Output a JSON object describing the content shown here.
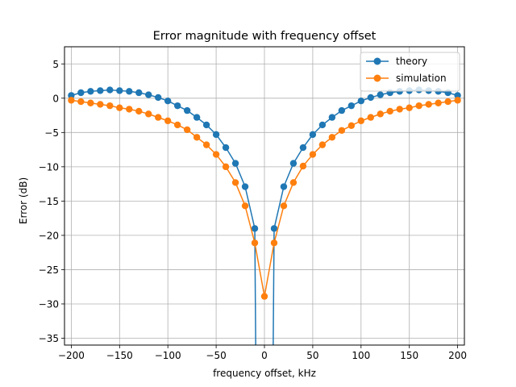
{
  "chart_data": {
    "type": "line",
    "title": "Error magnitude with frequency offset",
    "xlabel": "frequency offset, kHz",
    "ylabel": "Error (dB)",
    "xlim": [
      -207,
      207
    ],
    "ylim": [
      -36,
      7.5
    ],
    "xticks": [
      -200,
      -150,
      -100,
      -50,
      0,
      50,
      100,
      150,
      200
    ],
    "yticks": [
      5,
      0,
      -5,
      -10,
      -15,
      -20,
      -25,
      -30,
      -35
    ],
    "grid": true,
    "legend_position": "top-right",
    "series": [
      {
        "name": "theory",
        "color": "#1f77b4",
        "marker": "circle",
        "x": [
          -200,
          -190,
          -180,
          -170,
          -160,
          -150,
          -140,
          -130,
          -120,
          -110,
          -100,
          -90,
          -80,
          -70,
          -60,
          -50,
          -40,
          -30,
          -20,
          -10,
          0,
          10,
          20,
          30,
          40,
          50,
          60,
          70,
          80,
          90,
          100,
          110,
          120,
          130,
          140,
          150,
          160,
          170,
          180,
          190,
          200
        ],
        "y": [
          0.4,
          0.8,
          1.0,
          1.1,
          1.2,
          1.1,
          1.0,
          0.8,
          0.5,
          0.1,
          -0.4,
          -1.1,
          -1.8,
          -2.8,
          -3.9,
          -5.3,
          -7.2,
          -9.5,
          -12.9,
          -19.0,
          null,
          -19.0,
          -12.9,
          -9.5,
          -7.2,
          -5.3,
          -3.9,
          -2.8,
          -1.8,
          -1.1,
          -0.4,
          0.1,
          0.5,
          0.8,
          1.0,
          1.1,
          1.2,
          1.1,
          1.0,
          0.8,
          0.4
        ],
        "dip_below_axis_between": [
          -10,
          10
        ]
      },
      {
        "name": "simulation",
        "color": "#ff7f0e",
        "marker": "circle",
        "x": [
          -200,
          -190,
          -180,
          -170,
          -160,
          -150,
          -140,
          -130,
          -120,
          -110,
          -100,
          -90,
          -80,
          -70,
          -60,
          -50,
          -40,
          -30,
          -20,
          -10,
          0,
          10,
          20,
          30,
          40,
          50,
          60,
          70,
          80,
          90,
          100,
          110,
          120,
          130,
          140,
          150,
          160,
          170,
          180,
          190,
          200
        ],
        "y": [
          -0.3,
          -0.5,
          -0.7,
          -0.9,
          -1.1,
          -1.4,
          -1.6,
          -1.9,
          -2.3,
          -2.8,
          -3.3,
          -3.9,
          -4.6,
          -5.7,
          -6.8,
          -8.2,
          -10.0,
          -12.3,
          -15.7,
          -21.1,
          -28.9,
          -21.1,
          -15.7,
          -12.3,
          -9.9,
          -8.2,
          -6.8,
          -5.7,
          -4.7,
          -4.0,
          -3.3,
          -2.8,
          -2.3,
          -1.9,
          -1.6,
          -1.4,
          -1.1,
          -0.9,
          -0.7,
          -0.5,
          -0.3
        ]
      }
    ]
  }
}
